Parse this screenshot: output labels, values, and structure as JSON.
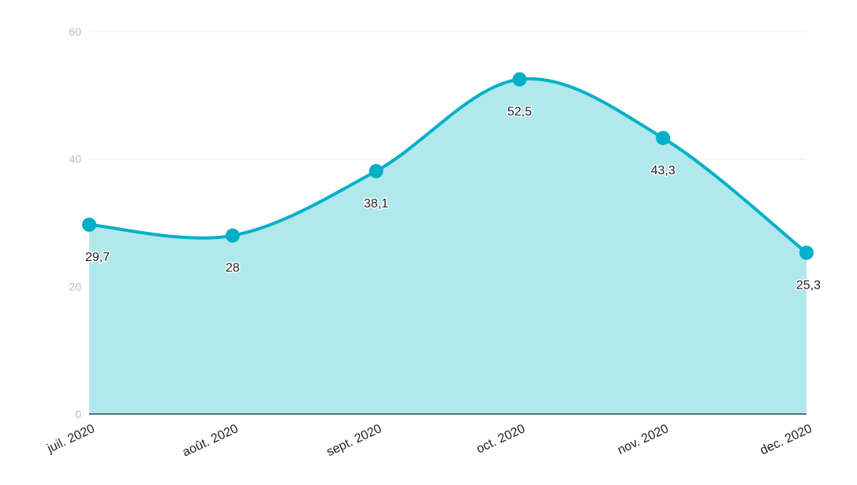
{
  "chart_data": {
    "type": "area",
    "categories": [
      "juil. 2020",
      "août. 2020",
      "sept. 2020",
      "oct. 2020",
      "nov. 2020",
      "dec. 2020"
    ],
    "values": [
      29.7,
      28,
      38.1,
      52.5,
      43.3,
      25.3
    ],
    "data_labels": [
      "29,7",
      "28",
      "38,1",
      "52,5",
      "43,3",
      "25,3"
    ],
    "y_ticks": [
      0,
      20,
      40,
      60
    ],
    "ylim": [
      0,
      60
    ],
    "grid": true,
    "colors": {
      "line": "#00b0c8",
      "fill": "#b0e8ec",
      "grid": "#ececec",
      "axis": "#37474f"
    }
  }
}
